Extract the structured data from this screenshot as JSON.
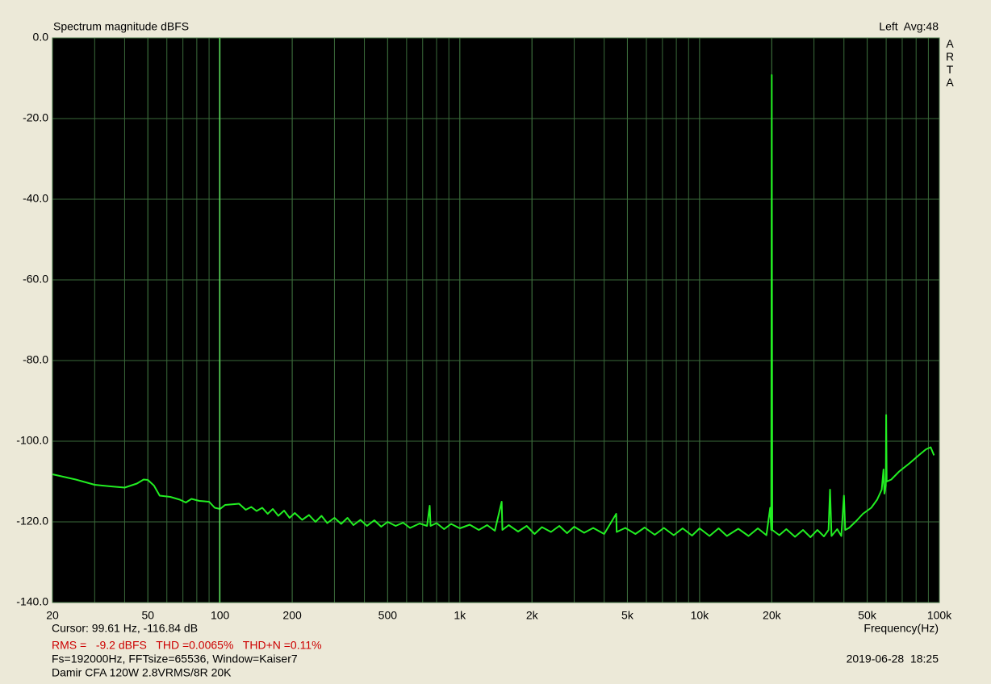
{
  "chart_data": {
    "type": "line",
    "title": "Spectrum magnitude dBFS",
    "channel_label": "Left  Avg:48",
    "brand": "ARTA",
    "x_label": "Frequency(Hz)",
    "log_x": true,
    "grid": true,
    "minor_x_grid": true,
    "xlim": [
      20,
      100000
    ],
    "ylim": [
      -140,
      0
    ],
    "xticks": [
      20,
      50,
      100,
      200,
      500,
      {
        "value": 1000,
        "label": "1k"
      },
      {
        "value": 2000,
        "label": "2k"
      },
      {
        "value": 5000,
        "label": "5k"
      },
      {
        "value": 10000,
        "label": "10k"
      },
      {
        "value": 20000,
        "label": "20k"
      },
      {
        "value": 50000,
        "label": "50k"
      },
      {
        "value": 100000,
        "label": "100k"
      }
    ],
    "yticks": [
      {
        "value": 0,
        "label": "0.0"
      },
      {
        "value": -20,
        "label": "-20.0"
      },
      {
        "value": -40,
        "label": "-40.0"
      },
      {
        "value": -60,
        "label": "-60.0"
      },
      {
        "value": -80,
        "label": "-80.0"
      },
      {
        "value": -100,
        "label": "-100.0"
      },
      {
        "value": -120,
        "label": "-120.0"
      },
      {
        "value": -140,
        "label": "-140.0"
      }
    ],
    "cursor_x": 99.61,
    "cursor_text": "Cursor: 99.61 Hz, -116.84 dB",
    "rms_text": "RMS =   -9.2 dBFS   THD =0.0065%   THD+N =0.11%",
    "settings_text": "Fs=192000Hz, FFTsize=65536, Window=Kaiser7",
    "description": "Damir CFA 120W 2.8VRMS/8R 20K",
    "timestamp": "2019-06-28  18:25",
    "series": [
      {
        "name": "Left",
        "color": "#22ee22",
        "x": [
          20,
          25,
          30,
          35,
          40,
          45,
          48,
          50,
          53,
          56,
          62,
          68,
          72,
          76,
          82,
          90,
          95,
          100,
          105,
          115,
          120,
          128,
          135,
          142,
          150,
          158,
          166,
          175,
          185,
          195,
          205,
          220,
          235,
          250,
          265,
          280,
          300,
          320,
          340,
          360,
          385,
          410,
          440,
          470,
          500,
          540,
          580,
          620,
          680,
          730,
          749,
          755,
          800,
          860,
          920,
          1000,
          1100,
          1200,
          1300,
          1400,
          1495,
          1505,
          1600,
          1750,
          1900,
          2050,
          2200,
          2400,
          2600,
          2800,
          3000,
          3300,
          3600,
          4000,
          4490,
          4510,
          4900,
          5400,
          5900,
          6500,
          7100,
          7800,
          8500,
          9300,
          10000,
          11000,
          12000,
          13000,
          14500,
          16000,
          17500,
          19000,
          19700,
          19900,
          20000,
          20100,
          21500,
          23000,
          25000,
          27000,
          29000,
          31000,
          33000,
          34500,
          35000,
          35500,
          37500,
          39000,
          40000,
          40500,
          42000,
          45000,
          48000,
          52000,
          55000,
          57500,
          58500,
          59000,
          59800,
          60000,
          60300,
          63000,
          68000,
          75000,
          82000,
          88000,
          92000,
          95000
        ],
        "values": [
          -108.2,
          -109.5,
          -110.8,
          -111.2,
          -111.5,
          -110.5,
          -109.5,
          -109.6,
          -111,
          -113.5,
          -113.8,
          -114.5,
          -115.2,
          -114.3,
          -114.8,
          -115,
          -116.5,
          -116.8,
          -115.8,
          -115.6,
          -115.5,
          -117,
          -116.3,
          -117.3,
          -116.5,
          -118,
          -116.8,
          -118.5,
          -117.2,
          -119,
          -117.8,
          -119.5,
          -118.3,
          -120,
          -118.5,
          -120.3,
          -119,
          -120.5,
          -119,
          -120.8,
          -119.5,
          -121,
          -119.6,
          -121.2,
          -120,
          -121,
          -120.2,
          -121.5,
          -120.4,
          -121,
          -116,
          -121,
          -120.3,
          -121.8,
          -120.5,
          -121.6,
          -120.7,
          -122,
          -120.8,
          -122.2,
          -115,
          -122,
          -120.8,
          -122.4,
          -121,
          -123,
          -121.3,
          -122.5,
          -121,
          -122.8,
          -121.2,
          -122.7,
          -121.5,
          -123,
          -118,
          -122.5,
          -121.5,
          -123,
          -121.4,
          -123.2,
          -121.5,
          -123.3,
          -121.6,
          -123.4,
          -121.6,
          -123.5,
          -121.6,
          -123.5,
          -121.7,
          -123.5,
          -121.6,
          -123.3,
          -116.5,
          -122,
          -9.2,
          -122,
          -123.3,
          -121.8,
          -123.7,
          -122,
          -123.8,
          -122,
          -123.6,
          -122,
          -112,
          -123.5,
          -121.8,
          -123.5,
          -113.5,
          -122,
          -121.5,
          -119.8,
          -118,
          -116.5,
          -114.5,
          -112,
          -107,
          -113,
          -111,
          -93.5,
          -110,
          -109.5,
          -107.5,
          -105.5,
          -103.5,
          -102,
          -101.5,
          -103.5
        ]
      }
    ]
  }
}
